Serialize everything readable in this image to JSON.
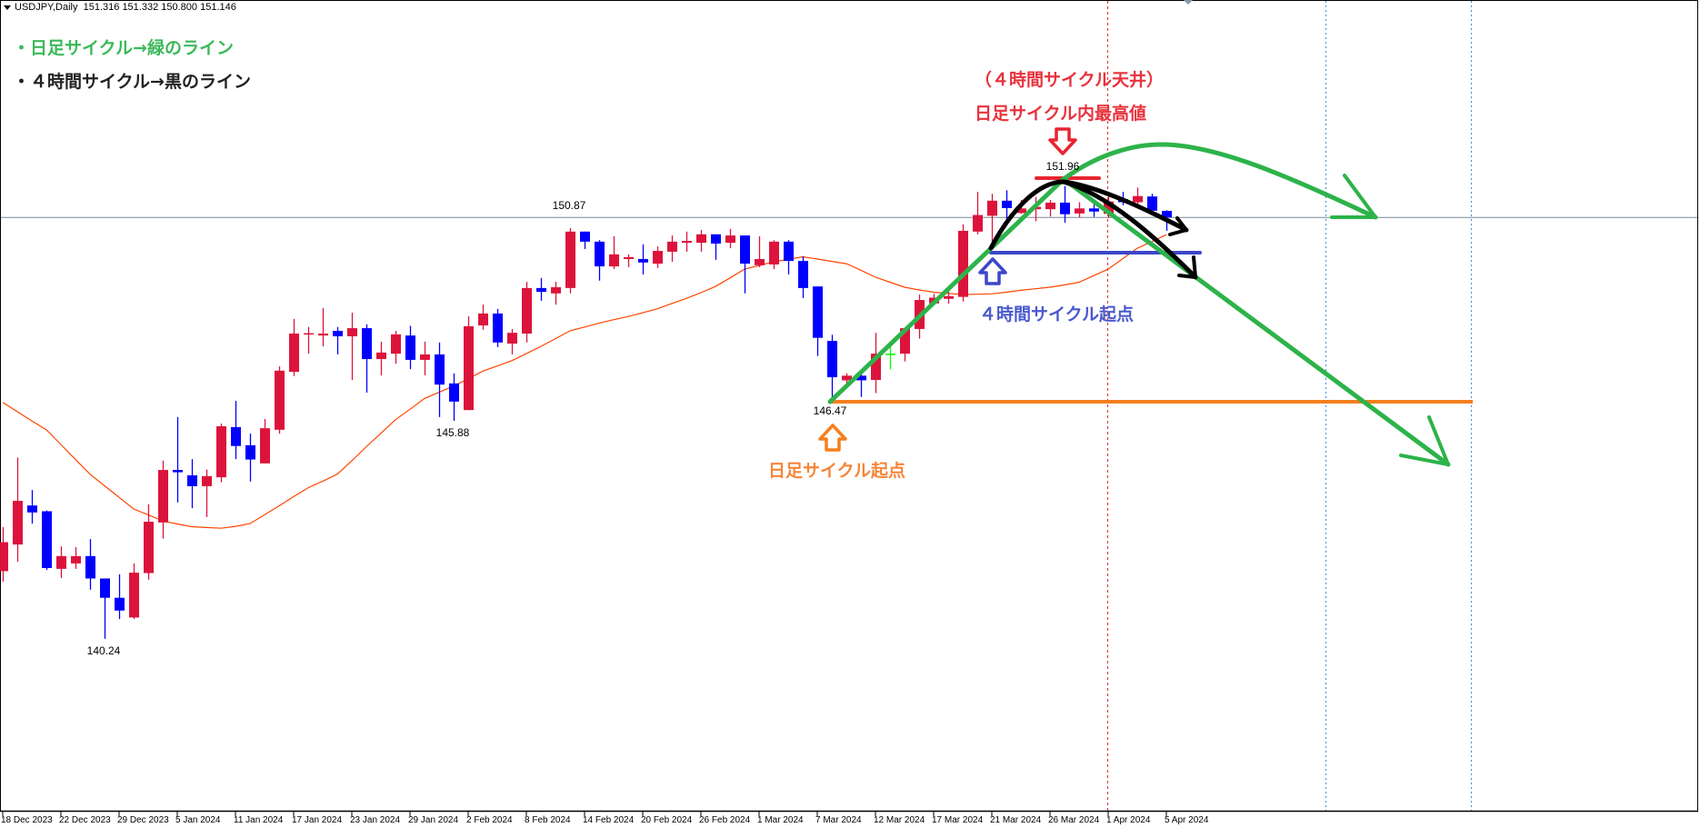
{
  "header": {
    "symbol": "USDJPY,Daily",
    "ohlc": "151.316 151.332 150.800 151.146"
  },
  "legend_notes": {
    "daily": "・日足サイクル→緑のライン",
    "h4": "・４時間サイクル→黒のライン"
  },
  "annotations": {
    "h4_top": "（４時間サイクル天井）",
    "daily_high": "日足サイクル内最高値",
    "h4_start": "４時間サイクル起点",
    "daily_start": "日足サイクル起点"
  },
  "colors": {
    "bull": "#dc143c",
    "bear": "#0000ff",
    "doji": "#00ff00",
    "ma": "#ff4500",
    "green_line": "#2db34a",
    "black_line": "#000000",
    "blue_line": "#3c46c8",
    "orange_line": "#f47f20",
    "red_mark": "#e8242f",
    "current_price": "#7a8a99",
    "note_green": "#3cb95a",
    "note_red": "#e8323c",
    "note_blue": "#4a5acd",
    "note_orange": "#f5863a"
  },
  "chart_data": {
    "type": "candlestick",
    "title": "",
    "current_price": 151.146,
    "price_labels": {
      "high_1": "150.87",
      "low_1": "145.88",
      "low_0": "140.24",
      "peak": "151.96",
      "cycle_low": "146.47"
    },
    "x_tick_labels": [
      "18 Dec 2023",
      "22 Dec 2023",
      "29 Dec 2023",
      "5 Jan 2024",
      "11 Jan 2024",
      "17 Jan 2024",
      "23 Jan 2024",
      "29 Jan 2024",
      "2 Feb 2024",
      "8 Feb 2024",
      "14 Feb 2024",
      "20 Feb 2024",
      "26 Feb 2024",
      "1 Mar 2024",
      "7 Mar 2024",
      "12 Mar 2024",
      "17 Mar 2024",
      "21 Mar 2024",
      "26 Mar 2024",
      "1 Apr 2024",
      "5 Apr 2024"
    ],
    "ohlc": [
      [
        141.99,
        143.13,
        141.72,
        142.74
      ],
      [
        142.68,
        144.93,
        142.23,
        143.81
      ],
      [
        143.69,
        144.09,
        143.22,
        143.51
      ],
      [
        143.54,
        143.56,
        142.02,
        142.07
      ],
      [
        142.05,
        142.63,
        141.81,
        142.38
      ],
      [
        142.19,
        142.61,
        142.05,
        142.38
      ],
      [
        142.38,
        142.82,
        141.51,
        141.8
      ],
      [
        141.8,
        141.8,
        140.24,
        141.3
      ],
      [
        141.3,
        141.91,
        140.75,
        140.97
      ],
      [
        140.79,
        142.19,
        140.75,
        141.95
      ],
      [
        141.94,
        143.72,
        141.77,
        143.27
      ],
      [
        143.25,
        144.85,
        142.83,
        144.61
      ],
      [
        144.61,
        145.98,
        143.77,
        144.55
      ],
      [
        144.47,
        144.89,
        143.62,
        144.19
      ],
      [
        144.19,
        144.62,
        143.39,
        144.45
      ],
      [
        144.42,
        145.81,
        144.29,
        145.74
      ],
      [
        145.72,
        146.4,
        144.89,
        145.23
      ],
      [
        145.25,
        145.55,
        144.31,
        144.88
      ],
      [
        144.78,
        145.93,
        144.78,
        145.69
      ],
      [
        145.65,
        147.29,
        145.55,
        147.18
      ],
      [
        147.15,
        148.52,
        147.04,
        148.14
      ],
      [
        148.12,
        148.31,
        147.62,
        148.15
      ],
      [
        148.09,
        148.8,
        147.81,
        148.14
      ],
      [
        148.21,
        148.31,
        147.6,
        148.07
      ],
      [
        148.07,
        148.68,
        146.94,
        148.28
      ],
      [
        148.28,
        148.38,
        146.61,
        147.48
      ],
      [
        147.48,
        147.93,
        147.06,
        147.65
      ],
      [
        147.62,
        148.21,
        147.36,
        148.12
      ],
      [
        148.09,
        148.34,
        147.22,
        147.46
      ],
      [
        147.46,
        147.93,
        147.06,
        147.6
      ],
      [
        147.6,
        147.91,
        145.98,
        146.82
      ],
      [
        146.85,
        147.11,
        145.88,
        146.38
      ],
      [
        146.16,
        148.59,
        146.16,
        148.33
      ],
      [
        148.35,
        148.89,
        148.24,
        148.66
      ],
      [
        148.66,
        148.78,
        147.79,
        147.91
      ],
      [
        147.88,
        148.26,
        147.6,
        148.16
      ],
      [
        148.14,
        149.48,
        147.91,
        149.32
      ],
      [
        149.32,
        149.58,
        148.99,
        149.22
      ],
      [
        149.18,
        149.48,
        148.89,
        149.34
      ],
      [
        149.32,
        150.87,
        149.18,
        150.78
      ],
      [
        150.78,
        150.78,
        150.33,
        150.52
      ],
      [
        150.52,
        150.56,
        149.51,
        149.88
      ],
      [
        149.88,
        150.66,
        149.81,
        150.19
      ],
      [
        150.07,
        150.19,
        149.86,
        150.12
      ],
      [
        150.07,
        150.45,
        149.67,
        149.98
      ],
      [
        149.95,
        150.4,
        149.84,
        150.28
      ],
      [
        150.26,
        150.68,
        150.0,
        150.52
      ],
      [
        150.49,
        150.78,
        150.26,
        150.54
      ],
      [
        150.49,
        150.82,
        150.26,
        150.71
      ],
      [
        150.71,
        150.71,
        150.05,
        150.47
      ],
      [
        150.49,
        150.85,
        150.35,
        150.68
      ],
      [
        150.68,
        150.68,
        149.18,
        149.95
      ],
      [
        149.91,
        150.66,
        149.86,
        150.07
      ],
      [
        149.93,
        150.56,
        149.81,
        150.52
      ],
      [
        150.52,
        150.56,
        149.67,
        150.02
      ],
      [
        150.02,
        150.14,
        149.06,
        149.32
      ],
      [
        149.36,
        149.36,
        147.56,
        148.03
      ],
      [
        147.95,
        148.11,
        146.47,
        147.01
      ],
      [
        146.93,
        147.11,
        146.82,
        147.05
      ],
      [
        147.05,
        147.13,
        146.5,
        146.93
      ],
      [
        146.94,
        148.16,
        146.6,
        147.62
      ],
      [
        147.62,
        147.91,
        147.21,
        147.62
      ],
      [
        147.62,
        148.28,
        147.42,
        148.28
      ],
      [
        148.26,
        149.15,
        148.01,
        149.01
      ],
      [
        148.92,
        149.17,
        148.92,
        149.07
      ],
      [
        149.04,
        149.34,
        148.91,
        149.11
      ],
      [
        149.09,
        150.97,
        148.97,
        150.8
      ],
      [
        150.78,
        151.81,
        150.71,
        151.21
      ],
      [
        151.19,
        151.76,
        150.46,
        151.58
      ],
      [
        151.58,
        151.85,
        151.05,
        151.39
      ],
      [
        151.26,
        151.6,
        151.24,
        151.38
      ],
      [
        151.36,
        151.68,
        151.05,
        151.42
      ],
      [
        151.36,
        151.6,
        151.17,
        151.53
      ],
      [
        151.53,
        151.96,
        151.01,
        151.23
      ],
      [
        151.25,
        151.54,
        151.15,
        151.38
      ],
      [
        151.38,
        151.52,
        151.16,
        151.3
      ],
      [
        151.24,
        151.72,
        151.13,
        151.56
      ],
      [
        151.62,
        151.81,
        151.46,
        151.54
      ],
      [
        151.54,
        151.92,
        151.45,
        151.7
      ],
      [
        151.69,
        151.76,
        151.21,
        151.32
      ],
      [
        151.316,
        151.332,
        150.8,
        151.146
      ]
    ],
    "moving_average": [
      146.36,
      146.12,
      145.88,
      145.65,
      145.27,
      144.88,
      144.5,
      144.2,
      143.9,
      143.6,
      143.45,
      143.29,
      143.21,
      143.14,
      143.12,
      143.1,
      143.15,
      143.22,
      143.45,
      143.68,
      143.92,
      144.15,
      144.32,
      144.5,
      144.85,
      145.21,
      145.56,
      145.91,
      146.18,
      146.46,
      146.62,
      146.78,
      146.97,
      147.17,
      147.3,
      147.44,
      147.62,
      147.81,
      148.01,
      148.21,
      148.31,
      148.41,
      148.5,
      148.58,
      148.68,
      148.78,
      148.92,
      149.05,
      149.2,
      149.36,
      149.58,
      149.81,
      149.9,
      150.0,
      150.06,
      150.13,
      150.07,
      150.01,
      149.95,
      149.78,
      149.6,
      149.47,
      149.34,
      149.27,
      149.21,
      149.18,
      149.15,
      149.16,
      149.17,
      149.21,
      149.26,
      149.3,
      149.34,
      149.4,
      149.47,
      149.64,
      149.81,
      150.08,
      150.35,
      150.52,
      150.7
    ],
    "grid": false,
    "legend": "none"
  }
}
